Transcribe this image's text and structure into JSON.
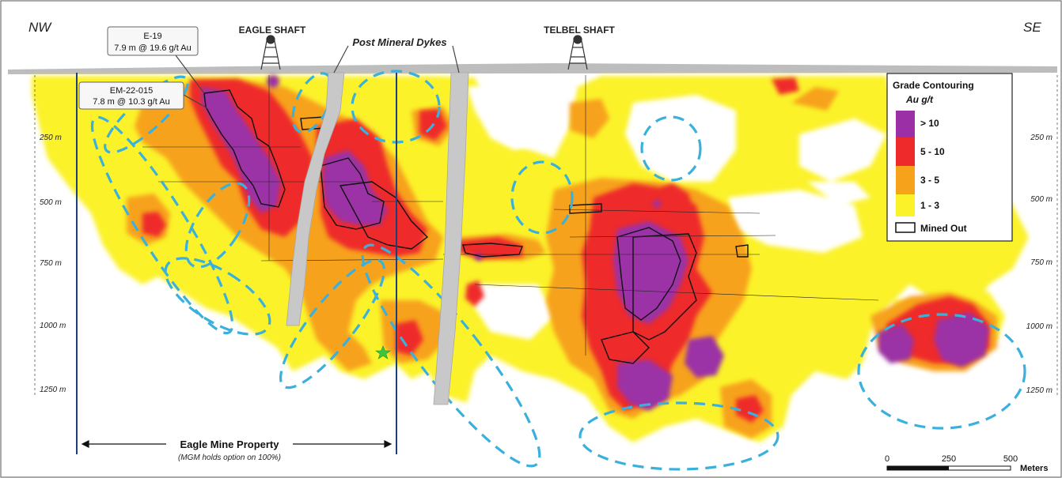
{
  "corners": {
    "left": "NW",
    "right": "SE"
  },
  "shafts": [
    {
      "name": "EAGLE SHAFT"
    },
    {
      "name": "TELBEL SHAFT"
    }
  ],
  "dykes_label": "Post Mineral Dykes",
  "callouts": [
    {
      "hole": "E-19",
      "intercept": "7.9 m @ 19.6 g/t Au"
    },
    {
      "hole": "EM-22-015",
      "intercept": "7.8 m @ 10.3 g/t Au"
    }
  ],
  "depth_labels_left": [
    "250 m",
    "500 m",
    "750 m",
    "1000 m",
    "1250 m"
  ],
  "depth_labels_right": [
    "250 m",
    "500 m",
    "750 m",
    "1000 m",
    "1250 m"
  ],
  "legend": {
    "title": "Grade Contouring",
    "unit": "Au g/t",
    "items": [
      {
        "label": "> 10",
        "color": "#9b30a6"
      },
      {
        "label": "5 - 10",
        "color": "#ee2a2a"
      },
      {
        "label": "3 - 5",
        "color": "#f7a21b"
      },
      {
        "label": "1 - 3",
        "color": "#fbf22a"
      }
    ],
    "mined_out": "Mined Out"
  },
  "property": {
    "label": "Eagle Mine Property",
    "note": "(MGM holds option on 100%)"
  },
  "scale_bar": {
    "ticks": [
      "0",
      "250",
      "500"
    ],
    "unit": "Meters"
  },
  "colors": {
    "target_outline": "#3ab0dc",
    "dyke": "#c8c8c8",
    "property_line": "#1f3f7a"
  }
}
